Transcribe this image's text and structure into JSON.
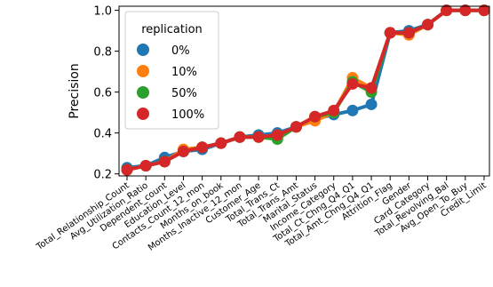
{
  "chart_data": {
    "type": "line",
    "title": "",
    "xlabel": "",
    "ylabel": "Precision",
    "ylim": [
      0.19,
      1.02
    ],
    "yticks": [
      0.2,
      0.4,
      0.6,
      0.8,
      1.0
    ],
    "ytick_labels": [
      "0.2",
      "0.4",
      "0.6",
      "0.8",
      "1.0"
    ],
    "grid": false,
    "legend": {
      "title": "replication",
      "placement": "top-left"
    },
    "categories": [
      "Total_Relationship_Count",
      "Avg_Utilization_Ratio",
      "Dependent_count",
      "Education_Level",
      "Contacts_Count_12_mon",
      "Months_on_book",
      "Months_Inactive_12_mon",
      "Customer_Age",
      "Total_Trans_Ct",
      "Total_Trans_Amt",
      "Marital_Status",
      "Income_Category",
      "Total_Ct_Chng_Q4_Q1",
      "Total_Amt_Chng_Q4_Q1",
      "Attrition_Flag",
      "Gender",
      "Card_Category",
      "Total_Revolving_Bal",
      "Avg_Open_To_Buy",
      "Credit_Limit"
    ],
    "series": [
      {
        "name": "0%",
        "color": "#1f77b4",
        "values": [
          0.23,
          0.24,
          0.28,
          0.31,
          0.32,
          0.35,
          0.38,
          0.39,
          0.4,
          0.43,
          0.47,
          0.49,
          0.51,
          0.54,
          0.89,
          0.9,
          0.93,
          1.0,
          1.0,
          1.0
        ]
      },
      {
        "name": "10%",
        "color": "#ff7f0e",
        "values": [
          0.22,
          0.24,
          0.26,
          0.32,
          0.33,
          0.35,
          0.38,
          0.38,
          0.39,
          0.43,
          0.46,
          0.5,
          0.67,
          0.62,
          0.89,
          0.88,
          0.93,
          1.0,
          1.0,
          1.0
        ]
      },
      {
        "name": "50%",
        "color": "#2ca02c",
        "values": [
          0.22,
          0.24,
          0.26,
          0.31,
          0.33,
          0.35,
          0.38,
          0.38,
          0.37,
          0.43,
          0.48,
          0.5,
          0.65,
          0.6,
          0.89,
          0.89,
          0.93,
          1.0,
          1.0,
          1.0
        ]
      },
      {
        "name": "100%",
        "color": "#d62728",
        "values": [
          0.22,
          0.24,
          0.26,
          0.31,
          0.33,
          0.35,
          0.38,
          0.38,
          0.39,
          0.43,
          0.48,
          0.51,
          0.64,
          0.62,
          0.89,
          0.89,
          0.93,
          1.0,
          1.0,
          1.0
        ]
      }
    ]
  }
}
